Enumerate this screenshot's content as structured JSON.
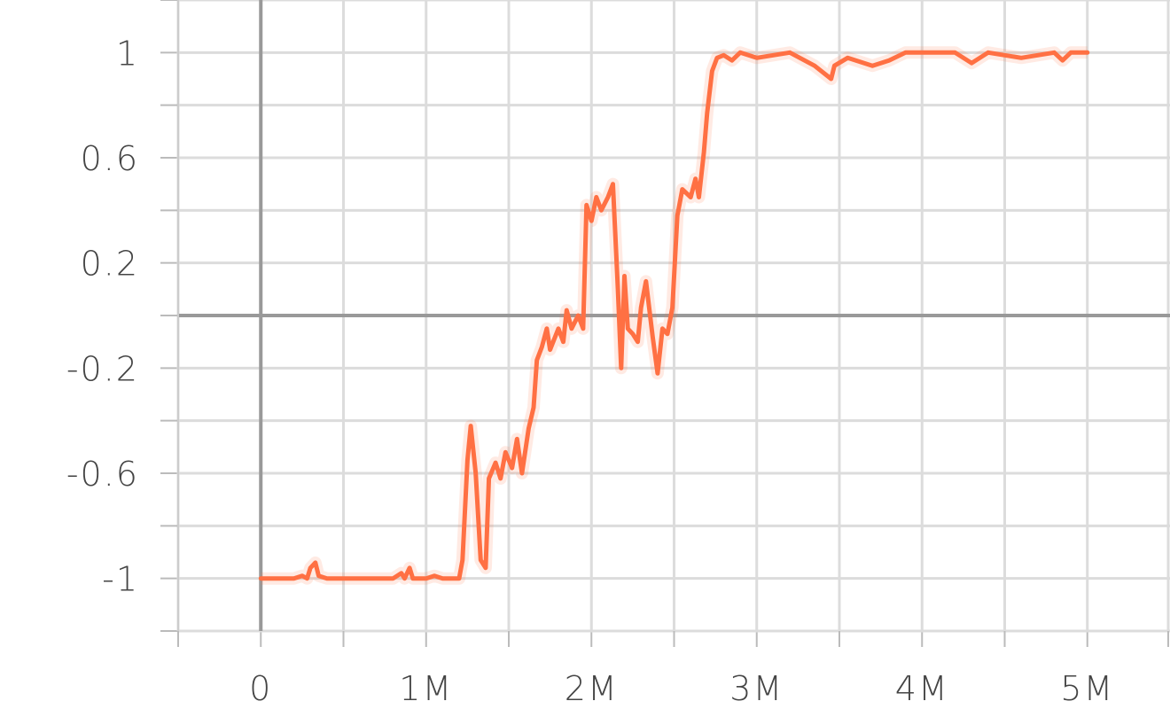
{
  "chart_data": {
    "type": "line",
    "xlim": [
      -500000,
      5500000
    ],
    "ylim": [
      -1.2,
      1.2
    ],
    "xticks": [
      0,
      {
        "value": 1000000,
        "label": "1M"
      },
      {
        "value": 2000000,
        "label": "2M"
      },
      {
        "value": 3000000,
        "label": "3M"
      },
      {
        "value": 4000000,
        "label": "4M"
      },
      {
        "value": 5000000,
        "label": "5M"
      }
    ],
    "yticks": [
      -1,
      -0.6,
      -0.2,
      0.2,
      0.6,
      1
    ],
    "grid": true,
    "series": [
      {
        "color": "#ff7043",
        "x": [
          0,
          200000,
          250000,
          280000,
          300000,
          330000,
          350000,
          400000,
          600000,
          800000,
          850000,
          870000,
          900000,
          920000,
          1000000,
          1050000,
          1100000,
          1200000,
          1220000,
          1250000,
          1270000,
          1300000,
          1330000,
          1360000,
          1380000,
          1420000,
          1450000,
          1480000,
          1520000,
          1550000,
          1580000,
          1620000,
          1650000,
          1670000,
          1700000,
          1730000,
          1750000,
          1800000,
          1830000,
          1850000,
          1880000,
          1920000,
          1950000,
          1970000,
          2000000,
          2030000,
          2060000,
          2100000,
          2130000,
          2160000,
          2180000,
          2200000,
          2220000,
          2250000,
          2280000,
          2300000,
          2330000,
          2370000,
          2400000,
          2430000,
          2460000,
          2490000,
          2520000,
          2550000,
          2600000,
          2630000,
          2650000,
          2680000,
          2700000,
          2730000,
          2760000,
          2800000,
          2850000,
          2900000,
          3000000,
          3100000,
          3200000,
          3350000,
          3450000,
          3470000,
          3550000,
          3700000,
          3800000,
          3900000,
          4000000,
          4200000,
          4300000,
          4400000,
          4600000,
          4800000,
          4850000,
          4900000,
          5000000
        ],
        "values": [
          -1,
          -1,
          -0.99,
          -1,
          -0.96,
          -0.94,
          -0.99,
          -1,
          -1,
          -1,
          -0.98,
          -1,
          -0.96,
          -1,
          -1,
          -0.99,
          -1,
          -1,
          -0.93,
          -0.55,
          -0.42,
          -0.6,
          -0.93,
          -0.96,
          -0.62,
          -0.56,
          -0.62,
          -0.52,
          -0.58,
          -0.47,
          -0.6,
          -0.43,
          -0.35,
          -0.17,
          -0.12,
          -0.05,
          -0.13,
          -0.05,
          -0.1,
          0.02,
          -0.05,
          0,
          -0.05,
          0.42,
          0.36,
          0.45,
          0.4,
          0.45,
          0.5,
          0.1,
          -0.2,
          0.15,
          -0.05,
          -0.07,
          -0.1,
          0.03,
          0.13,
          -0.08,
          -0.22,
          -0.05,
          -0.07,
          0.03,
          0.38,
          0.48,
          0.45,
          0.52,
          0.45,
          0.62,
          0.77,
          0.93,
          0.98,
          0.99,
          0.97,
          1,
          0.98,
          0.99,
          1,
          0.95,
          0.9,
          0.95,
          0.98,
          0.95,
          0.97,
          1,
          1,
          1,
          0.96,
          1,
          0.98,
          1,
          0.97,
          1,
          1
        ]
      }
    ]
  }
}
